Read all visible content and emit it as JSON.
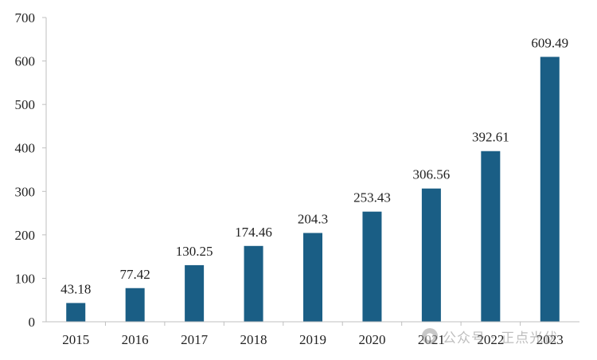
{
  "chart_data": {
    "type": "bar",
    "title": "",
    "xlabel": "",
    "ylabel": "",
    "categories": [
      "2015",
      "2016",
      "2017",
      "2018",
      "2019",
      "2020",
      "2021",
      "2022",
      "2023"
    ],
    "values": [
      43.18,
      77.42,
      130.25,
      174.46,
      204.3,
      253.43,
      306.56,
      392.61,
      609.49
    ],
    "data_labels": [
      "43.18",
      "77.42",
      "130.25",
      "174.46",
      "204.3",
      "253.43",
      "306.56",
      "392.61",
      "609.49"
    ],
    "ylim": [
      0,
      700
    ],
    "yticks": [
      0,
      100,
      200,
      300,
      400,
      500,
      600,
      700
    ],
    "grid": false,
    "legend": "none",
    "bar_color": "#1a5e85"
  },
  "watermark": {
    "icon": "wechat-icon",
    "text": "公众号 · 正点光伏"
  }
}
